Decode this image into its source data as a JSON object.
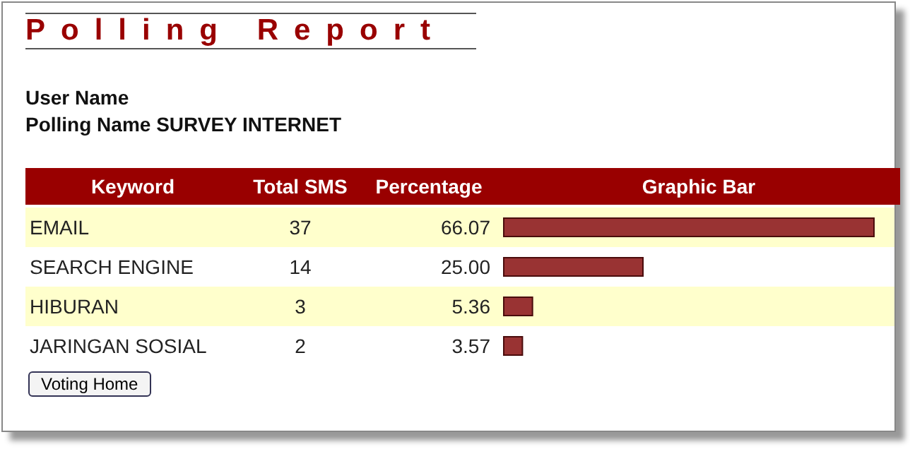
{
  "chart_data": {
    "type": "bar",
    "orientation": "horizontal",
    "title": "Polling Report",
    "subtitle": "User Name\nPolling Name SURVEY INTERNET",
    "ylabel": "Keyword",
    "xlabel": "Graphic Bar",
    "categories": [
      "EMAIL",
      "SEARCH ENGINE",
      "HIBURAN",
      "JARINGAN SOSIAL"
    ],
    "series": [
      {
        "name": "Percentage",
        "type": "bar",
        "color": "#993333",
        "values": [
          66.07,
          25.0,
          5.36,
          3.57
        ],
        "value_labels": [
          "66.07",
          "25.00",
          "5.36",
          "3.57"
        ]
      }
    ],
    "tick_labels": false,
    "legend": false,
    "annotations": [
      "Total SMS",
      "37",
      "14",
      "3",
      "2",
      "Voting Home"
    ]
  }
}
